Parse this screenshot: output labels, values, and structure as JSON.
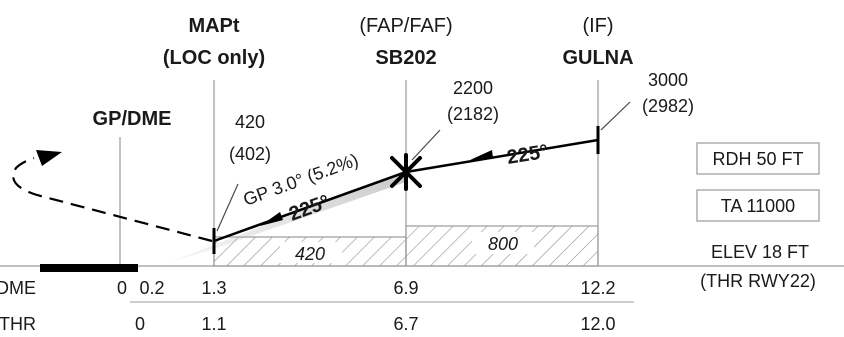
{
  "fixes": {
    "gp_dme": {
      "name": "GP/DME"
    },
    "mapt": {
      "name": "MAPt",
      "note": "(LOC only)",
      "alt": "420",
      "alt_paren": "(402)"
    },
    "sb202": {
      "role": "(FAP/FAF)",
      "name": "SB202",
      "alt": "2200",
      "alt_paren": "(2182)"
    },
    "gulna": {
      "role": "(IF)",
      "name": "GULNA",
      "alt": "3000",
      "alt_paren": "(2982)"
    }
  },
  "glidepath": {
    "label": "GP 3.0° (5.2%)",
    "course_intermediate": "225°",
    "course_final": "225°"
  },
  "info_boxes": {
    "rdh": "RDH 50 FT",
    "ta": "TA 11000"
  },
  "elevation": {
    "elev": "ELEV 18 FT",
    "thr": "(THR RWY22)"
  },
  "minimum_altitudes": {
    "final": "420",
    "intermediate": "800"
  },
  "dme_row": {
    "label": "DME",
    "values": [
      "0",
      "0.2",
      "1.3",
      "6.9",
      "12.2"
    ]
  },
  "thr_row": {
    "label": "THR",
    "values": [
      "0",
      "1.1",
      "6.7",
      "12.0"
    ]
  }
}
